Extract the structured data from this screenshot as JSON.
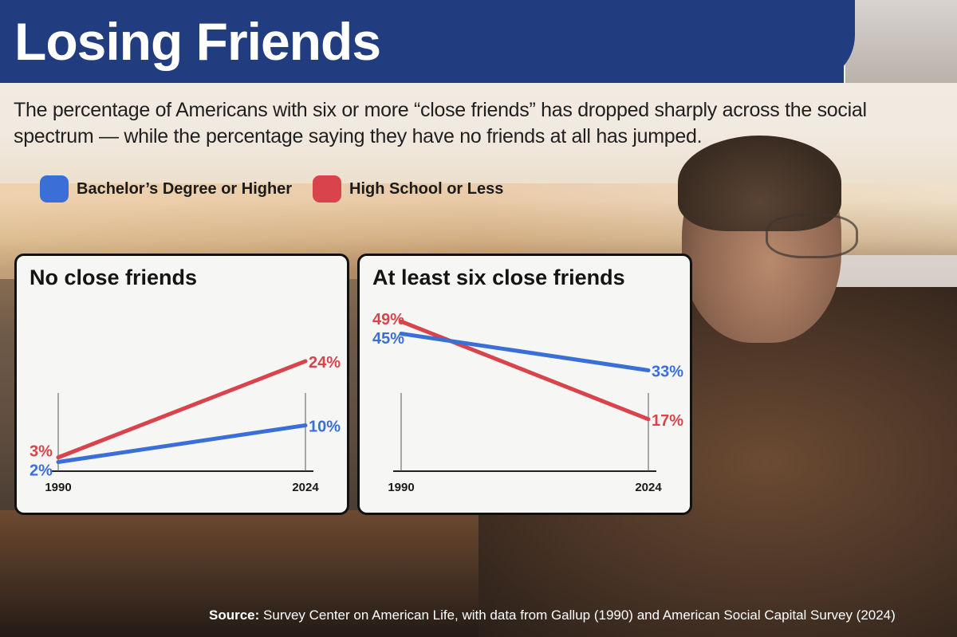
{
  "header": {
    "title": "Losing Friends"
  },
  "subtitle": "The percentage of Americans with six or more “close friends” has dropped sharply across the social spectrum — while the percentage saying they have no friends at all has jumped.",
  "legend": [
    {
      "label": "Bachelor’s Degree or Higher",
      "color": "#3a6fd8"
    },
    {
      "label": "High School or Less",
      "color": "#d9434c"
    }
  ],
  "colors": {
    "banner": "#223c80",
    "blue": "#3a6fd8",
    "red": "#d9434c"
  },
  "chart_data": [
    {
      "type": "line",
      "title": "No close friends",
      "x": [
        "1990",
        "2024"
      ],
      "series": [
        {
          "name": "Bachelor’s Degree or Higher",
          "values": [
            2,
            10
          ],
          "labels": [
            "2%",
            "10%"
          ]
        },
        {
          "name": "High School or Less",
          "values": [
            3,
            24
          ],
          "labels": [
            "3%",
            "24%"
          ]
        }
      ],
      "ylim": [
        0,
        40
      ]
    },
    {
      "type": "line",
      "title": "At least six close friends",
      "x": [
        "1990",
        "2024"
      ],
      "series": [
        {
          "name": "Bachelor’s Degree or Higher",
          "values": [
            45,
            33
          ],
          "labels": [
            "45%",
            "33%"
          ]
        },
        {
          "name": "High School or Less",
          "values": [
            49,
            17
          ],
          "labels": [
            "49%",
            "17%"
          ]
        }
      ],
      "ylim": [
        0,
        60
      ]
    }
  ],
  "source": {
    "prefix": "Source:",
    "text": " Survey Center on American Life, with data from Gallup (1990) and American Social Capital Survey (2024)"
  }
}
